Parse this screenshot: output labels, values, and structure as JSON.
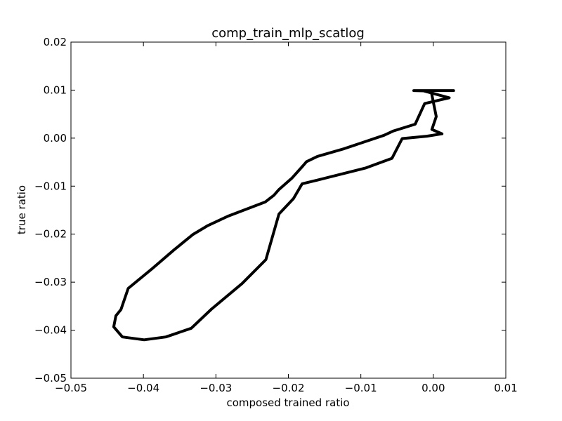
{
  "chart_data": {
    "type": "line",
    "title": "comp_train_mlp_scatlog",
    "xlabel": "composed trained ratio",
    "ylabel": "true ratio",
    "xlim": [
      -0.05,
      0.01
    ],
    "ylim": [
      -0.05,
      0.02
    ],
    "xticks": [
      -0.05,
      -0.04,
      -0.03,
      -0.02,
      -0.01,
      0.0,
      0.01
    ],
    "xtick_labels": [
      "−0.05",
      "−0.04",
      "−0.03",
      "−0.02",
      "−0.01",
      "0.00",
      "0.01"
    ],
    "yticks": [
      0.02,
      0.01,
      0.0,
      -0.01,
      -0.02,
      -0.03,
      -0.04,
      -0.05
    ],
    "ytick_labels": [
      "0.02",
      "0.01",
      "0.00",
      "−0.01",
      "−0.02",
      "−0.03",
      "−0.04",
      "−0.05"
    ],
    "grid": false,
    "series": [
      {
        "color": "#000000",
        "x": [
          -0.0027,
          0.0028,
          -0.0015,
          0.0022,
          -0.0012,
          -0.0025,
          -0.0055,
          -0.0068,
          -0.0123,
          -0.016,
          -0.0175,
          -0.018,
          -0.0195,
          -0.0213,
          -0.022,
          -0.0232,
          -0.0284,
          -0.0311,
          -0.0332,
          -0.0358,
          -0.0388,
          -0.0421,
          -0.0431,
          -0.0438,
          -0.0441,
          -0.0429,
          -0.0399,
          -0.0369,
          -0.0334,
          -0.0306,
          -0.0264,
          -0.0231,
          -0.0213,
          -0.0193,
          -0.0181,
          -0.0159,
          -0.0093,
          -0.0057,
          -0.0043,
          -0.0009,
          0.0012,
          -0.0002,
          0.0004,
          -0.0003,
          -0.0027
        ],
        "y": [
          0.0099,
          0.0099,
          0.0099,
          0.0084,
          0.0072,
          0.0029,
          0.0015,
          0.0006,
          -0.0022,
          -0.0038,
          -0.0049,
          -0.0058,
          -0.0083,
          -0.0107,
          -0.0119,
          -0.0133,
          -0.0163,
          -0.0182,
          -0.0201,
          -0.0233,
          -0.0272,
          -0.0313,
          -0.0357,
          -0.037,
          -0.0393,
          -0.0414,
          -0.042,
          -0.0414,
          -0.0396,
          -0.0356,
          -0.0303,
          -0.0253,
          -0.0158,
          -0.0126,
          -0.0095,
          -0.0087,
          -0.0062,
          -0.0042,
          -0.0001,
          0.0004,
          0.0009,
          0.0018,
          0.0045,
          0.0098,
          0.0099
        ]
      }
    ]
  }
}
